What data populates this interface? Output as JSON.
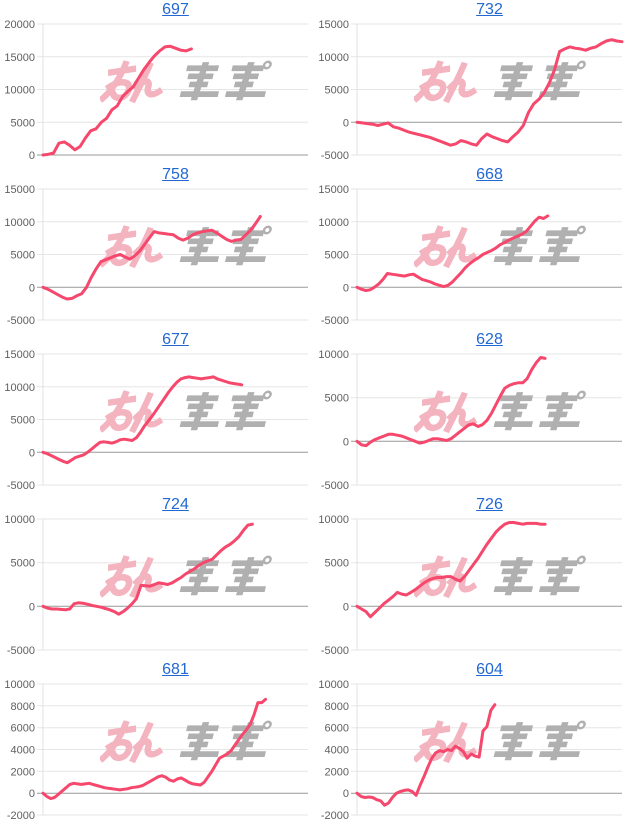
{
  "page": {
    "layout": "grid of 10 cumulative line charts, 2 columns x 5 rows"
  },
  "colors": {
    "background": "#ffffff",
    "line": "#f5486c",
    "link": "#2268d2",
    "grid_line": "#e6e6e6",
    "zero_line": "#999999",
    "axis_line": "#e0e0e0",
    "tick_label": "#5f5f5f",
    "watermark_pink": "#f3b3bf",
    "watermark_gray": "#b0b0b0"
  },
  "watermark": {
    "label": "みんレポ",
    "pink_part": "みん",
    "gray_part": "レポ"
  },
  "chart_data": [
    {
      "type": "line",
      "title": "697",
      "ylim": [
        0,
        20000
      ],
      "ytick_step": 5000,
      "x_fraction": 0.56,
      "values": [
        0,
        100,
        300,
        1800,
        2000,
        1500,
        800,
        1300,
        2600,
        3700,
        4000,
        5000,
        5600,
        6900,
        7500,
        8900,
        9700,
        10400,
        11700,
        13000,
        14100,
        15100,
        15900,
        16500,
        16600,
        16300,
        16000,
        15900,
        16200
      ]
    },
    {
      "type": "line",
      "title": "732",
      "ylim": [
        -5000,
        15000
      ],
      "ytick_step": 5000,
      "x_fraction": 1.0,
      "values": [
        0,
        -100,
        -200,
        -300,
        -500,
        -300,
        -100,
        -700,
        -900,
        -1200,
        -1500,
        -1700,
        -1900,
        -2100,
        -2300,
        -2600,
        -2900,
        -3200,
        -3500,
        -3300,
        -2800,
        -3000,
        -3300,
        -3500,
        -2500,
        -1800,
        -2200,
        -2500,
        -2800,
        -3000,
        -2200,
        -1500,
        -500,
        1500,
        2800,
        3500,
        4500,
        6000,
        8000,
        10800,
        11200,
        11500,
        11300,
        11200,
        11000,
        11300,
        11500,
        12000,
        12400,
        12600,
        12400,
        12300
      ]
    },
    {
      "type": "line",
      "title": "758",
      "ylim": [
        -5000,
        15000
      ],
      "ytick_step": 5000,
      "x_fraction": 0.82,
      "values": [
        0,
        -300,
        -700,
        -1100,
        -1500,
        -1800,
        -1700,
        -1300,
        -1000,
        0,
        1500,
        2800,
        3900,
        4200,
        4500,
        4800,
        5000,
        4600,
        4300,
        4800,
        5500,
        6500,
        7500,
        8500,
        8300,
        8200,
        8100,
        8000,
        7500,
        7200,
        7500,
        8000,
        8300,
        8500,
        8600,
        8700,
        8300,
        7800,
        7300,
        7000,
        7200,
        7300,
        8000,
        8700,
        9700,
        10800
      ]
    },
    {
      "type": "line",
      "title": "668",
      "ylim": [
        -5000,
        15000
      ],
      "ytick_step": 5000,
      "x_fraction": 0.72,
      "values": [
        0,
        -300,
        -500,
        -400,
        0,
        500,
        1200,
        2100,
        2000,
        1900,
        1800,
        1700,
        1900,
        2000,
        1600,
        1200,
        1000,
        800,
        500,
        300,
        100,
        300,
        800,
        1500,
        2200,
        3000,
        3600,
        4100,
        4500,
        5000,
        5300,
        5600,
        6000,
        6500,
        6800,
        7200,
        7500,
        7800,
        8100,
        8500,
        9300,
        10100,
        10700,
        10500,
        10900
      ]
    },
    {
      "type": "line",
      "title": "677",
      "ylim": [
        -5000,
        15000
      ],
      "ytick_step": 5000,
      "x_fraction": 0.75,
      "values": [
        0,
        -200,
        -500,
        -800,
        -1100,
        -1400,
        -1600,
        -1200,
        -800,
        -600,
        -400,
        0,
        500,
        1000,
        1500,
        1600,
        1500,
        1400,
        1600,
        1900,
        2000,
        1900,
        1800,
        2200,
        3000,
        4000,
        4800,
        5600,
        6500,
        7400,
        8300,
        9200,
        10000,
        10700,
        11200,
        11400,
        11500,
        11400,
        11300,
        11200,
        11300,
        11400,
        11500,
        11200,
        11000,
        10800,
        10600,
        10500,
        10400,
        10300
      ]
    },
    {
      "type": "line",
      "title": "628",
      "ylim": [
        -5000,
        10000
      ],
      "ytick_step": 5000,
      "x_fraction": 0.71,
      "values": [
        0,
        -400,
        -500,
        -100,
        200,
        400,
        600,
        800,
        800,
        700,
        600,
        400,
        200,
        0,
        -200,
        -100,
        100,
        300,
        300,
        200,
        100,
        300,
        700,
        1100,
        1500,
        1900,
        2000,
        1700,
        1900,
        2400,
        3200,
        4200,
        5200,
        6100,
        6400,
        6600,
        6700,
        6700,
        7200,
        8200,
        9000,
        9600,
        9500
      ]
    },
    {
      "type": "line",
      "title": "724",
      "ylim": [
        -5000,
        10000
      ],
      "ytick_step": 5000,
      "x_fraction": 0.79,
      "values": [
        0,
        -200,
        -300,
        -300,
        -350,
        -400,
        -300,
        300,
        400,
        350,
        250,
        100,
        0,
        -100,
        -250,
        -400,
        -600,
        -900,
        -600,
        -200,
        300,
        900,
        2400,
        2350,
        2300,
        2500,
        2700,
        2600,
        2500,
        2700,
        3000,
        3300,
        3700,
        4000,
        4300,
        4700,
        5000,
        5200,
        5400,
        5900,
        6400,
        6800,
        7100,
        7500,
        8000,
        8700,
        9300,
        9400
      ]
    },
    {
      "type": "line",
      "title": "726",
      "ylim": [
        -5000,
        10000
      ],
      "ytick_step": 5000,
      "x_fraction": 0.71,
      "values": [
        0,
        -300,
        -600,
        -1200,
        -700,
        -200,
        300,
        700,
        1100,
        1600,
        1400,
        1300,
        1600,
        1900,
        2300,
        2700,
        3000,
        3200,
        3300,
        3300,
        3400,
        3400,
        3100,
        2900,
        3400,
        4100,
        4800,
        5500,
        6300,
        7100,
        7800,
        8500,
        9000,
        9400,
        9600,
        9600,
        9500,
        9400,
        9500,
        9500,
        9500,
        9400,
        9400
      ]
    },
    {
      "type": "line",
      "title": "681",
      "ylim": [
        -2000,
        10000
      ],
      "ytick_step": 2000,
      "x_fraction": 0.84,
      "values": [
        0,
        -300,
        -500,
        -400,
        -100,
        200,
        500,
        800,
        900,
        850,
        800,
        850,
        900,
        800,
        700,
        600,
        500,
        450,
        400,
        350,
        300,
        350,
        400,
        500,
        550,
        600,
        700,
        900,
        1100,
        1300,
        1500,
        1600,
        1450,
        1200,
        1100,
        1300,
        1400,
        1200,
        1000,
        850,
        800,
        750,
        1000,
        1500,
        2000,
        2600,
        3200,
        3400,
        3600,
        3900,
        4400,
        4900,
        5400,
        5800,
        6300,
        7200,
        8300,
        8300,
        8600
      ]
    },
    {
      "type": "line",
      "title": "604",
      "ylim": [
        -2000,
        10000
      ],
      "ytick_step": 2000,
      "x_fraction": 0.52,
      "values": [
        0,
        -300,
        -400,
        -350,
        -400,
        -600,
        -700,
        -1100,
        -900,
        -400,
        0,
        150,
        250,
        300,
        150,
        -200,
        700,
        1500,
        2400,
        3200,
        3700,
        3900,
        3800,
        4000,
        3900,
        4300,
        4100,
        3800,
        3200,
        3600,
        3400,
        3300,
        5700,
        6100,
        7600,
        8100
      ]
    }
  ]
}
